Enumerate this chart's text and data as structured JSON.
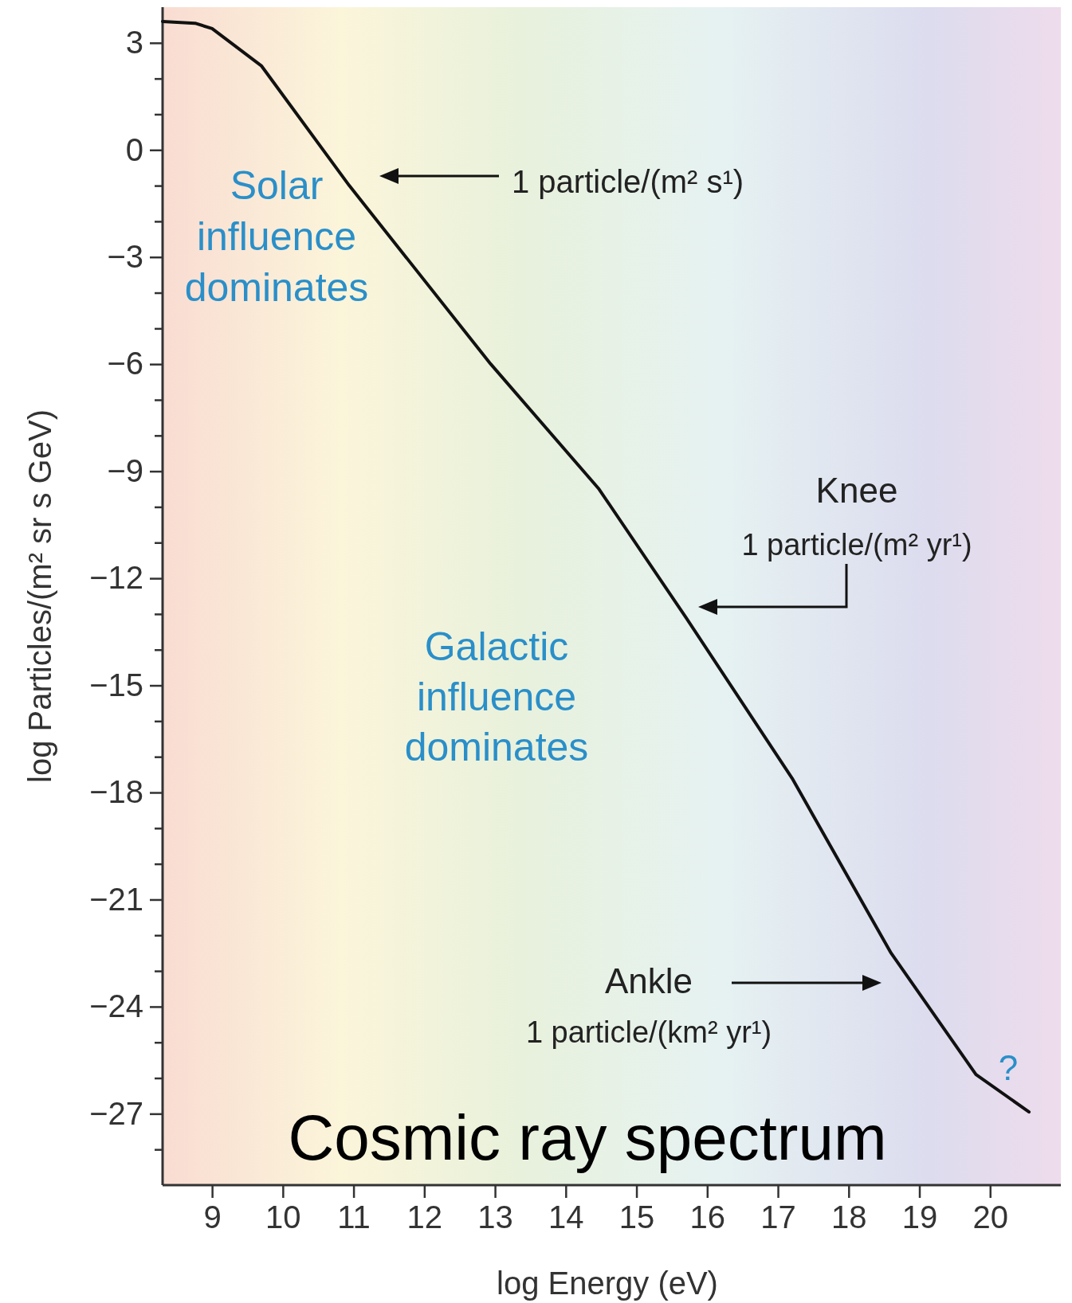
{
  "chart_data": {
    "type": "line",
    "title": "Cosmic ray spectrum",
    "xlabel": "log Energy (eV)",
    "ylabel": "log Particles/(m² sr s GeV)",
    "x": [
      8.3,
      8.76,
      9.0,
      9.7,
      10.94,
      12.94,
      14.47,
      15.7,
      17.2,
      18.6,
      19.8,
      20.55
    ],
    "series": [
      {
        "color": "#111111",
        "values": [
          3.6,
          3.55,
          3.4,
          2.35,
          -1.0,
          -6.0,
          -9.5,
          -13.1,
          -17.6,
          -22.5,
          -25.9,
          -26.95
        ]
      }
    ],
    "xlim": [
      8.3,
      21
    ],
    "ylim": [
      -29,
      4
    ],
    "xticks": [
      9,
      10,
      11,
      12,
      13,
      14,
      15,
      16,
      17,
      18,
      19,
      20
    ],
    "yticks": [
      {
        "value": -28,
        "label": null
      },
      {
        "value": -27,
        "label": "−27"
      },
      {
        "value": -26,
        "label": null
      },
      {
        "value": -25,
        "label": null
      },
      {
        "value": -24,
        "label": "−24"
      },
      {
        "value": -23,
        "label": null
      },
      {
        "value": -22,
        "label": null
      },
      {
        "value": -21,
        "label": "−21"
      },
      {
        "value": -20,
        "label": null
      },
      {
        "value": -19,
        "label": null
      },
      {
        "value": -18,
        "label": "−18"
      },
      {
        "value": -17,
        "label": null
      },
      {
        "value": -16,
        "label": null
      },
      {
        "value": -15,
        "label": "−15"
      },
      {
        "value": -14,
        "label": null
      },
      {
        "value": -13,
        "label": null
      },
      {
        "value": -12,
        "label": "−12"
      },
      {
        "value": -11,
        "label": null
      },
      {
        "value": -10,
        "label": null
      },
      {
        "value": -9,
        "label": "−9"
      },
      {
        "value": -8,
        "label": null
      },
      {
        "value": -7,
        "label": null
      },
      {
        "value": -6,
        "label": "−6"
      },
      {
        "value": -5,
        "label": null
      },
      {
        "value": -4,
        "label": null
      },
      {
        "value": -3,
        "label": "−3"
      },
      {
        "value": -2,
        "label": null
      },
      {
        "value": -1,
        "label": null
      },
      0,
      {
        "value": 1,
        "label": null
      },
      {
        "value": 2,
        "label": null
      },
      3
    ],
    "annotations": [
      "Solar influence dominates",
      "1 particle/(m² s¹)",
      "Galactic influence dominates",
      "Knee",
      "1 particle/(m² yr¹)",
      "Ankle",
      "1 particle/(km² yr¹)",
      "?"
    ],
    "grid": false,
    "marker": "none",
    "line_style": "solid"
  }
}
